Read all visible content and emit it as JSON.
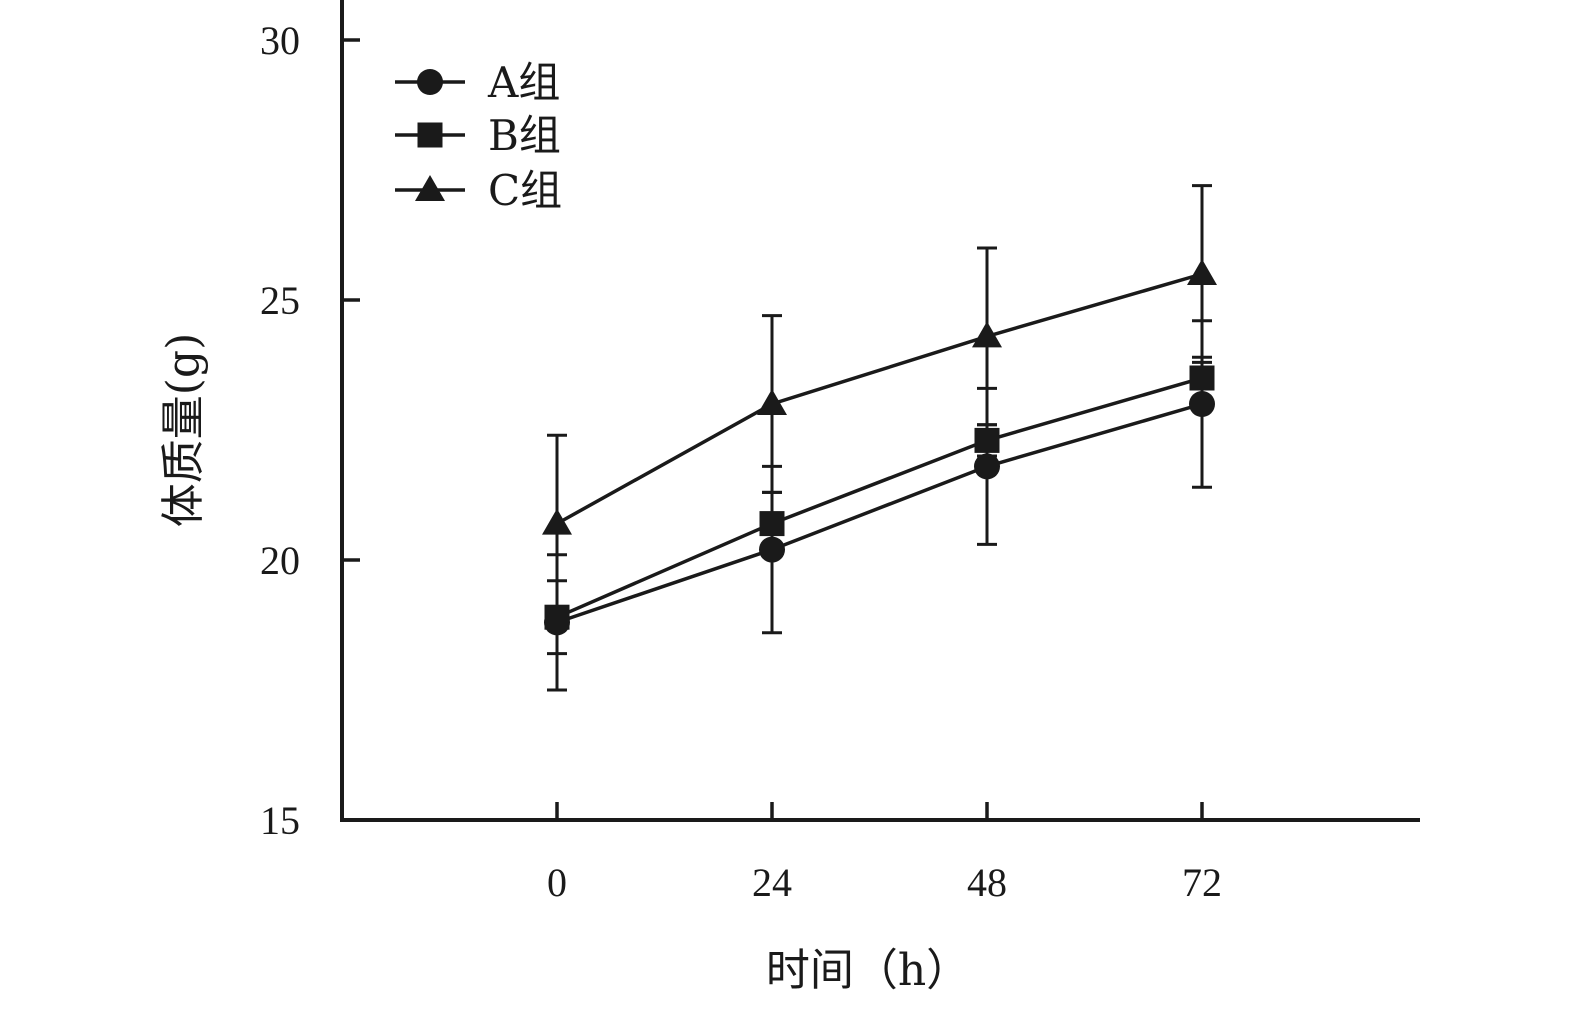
{
  "chart_data": {
    "type": "line",
    "title": "",
    "xlabel": "时间（h）",
    "ylabel": "体质量(g)",
    "x": [
      0,
      24,
      48,
      72
    ],
    "x_tick_labels": [
      "0",
      "24",
      "48",
      "72"
    ],
    "y_ticks": [
      15,
      20,
      25,
      30
    ],
    "y_tick_labels": [
      "15",
      "20",
      "25",
      "30"
    ],
    "ylim": [
      15,
      30.8
    ],
    "grid": false,
    "legend_position": "top-left",
    "series": [
      {
        "name": "A组",
        "marker": "circle",
        "values": [
          18.8,
          20.2,
          21.8,
          23.0
        ],
        "errors": [
          1.3,
          1.6,
          1.5,
          1.6
        ]
      },
      {
        "name": "B组",
        "marker": "square",
        "values": [
          18.9,
          20.7,
          22.3,
          23.5
        ],
        "errors": [
          0.7,
          0.6,
          0.3,
          0.4
        ]
      },
      {
        "name": "C组",
        "marker": "triangle",
        "values": [
          20.7,
          23.0,
          24.3,
          25.5
        ],
        "errors": [
          1.7,
          1.7,
          1.7,
          1.7
        ]
      }
    ]
  }
}
